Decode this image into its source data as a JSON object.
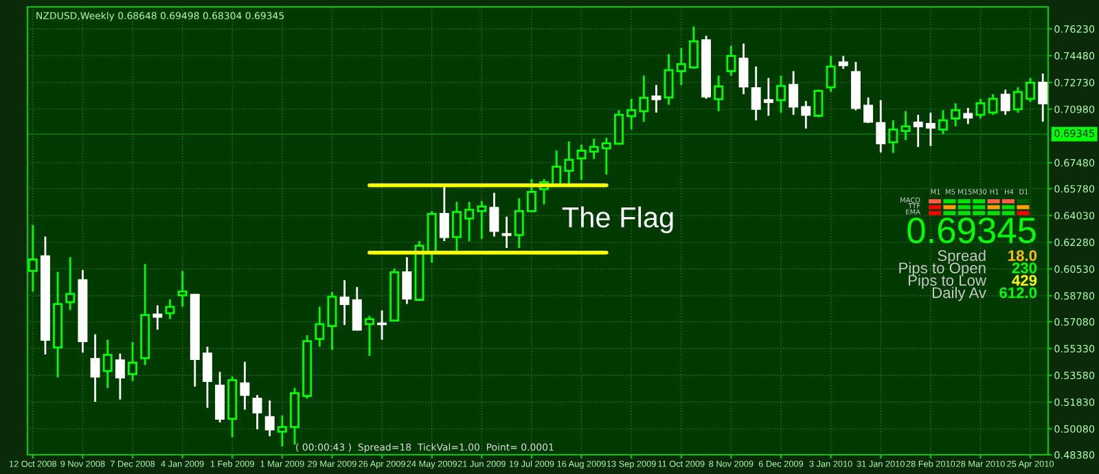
{
  "chart_data": {
    "type": "candlestick",
    "x": [
      "2008-10-12",
      "2008-10-19",
      "2008-10-26",
      "2008-11-02",
      "2008-11-09",
      "2008-11-16",
      "2008-11-23",
      "2008-11-30",
      "2008-12-07",
      "2008-12-14",
      "2008-12-21",
      "2008-12-28",
      "2009-01-04",
      "2009-01-11",
      "2009-01-18",
      "2009-01-25",
      "2009-02-01",
      "2009-02-08",
      "2009-02-15",
      "2009-02-22",
      "2009-03-01",
      "2009-03-08",
      "2009-03-15",
      "2009-03-22",
      "2009-03-29",
      "2009-04-05",
      "2009-04-12",
      "2009-04-19",
      "2009-04-26",
      "2009-05-03",
      "2009-05-10",
      "2009-05-17",
      "2009-05-24",
      "2009-05-31",
      "2009-06-07",
      "2009-06-14",
      "2009-06-21",
      "2009-06-28",
      "2009-07-05",
      "2009-07-12",
      "2009-07-19",
      "2009-07-26",
      "2009-08-02",
      "2009-08-09",
      "2009-08-16",
      "2009-08-23",
      "2009-08-30",
      "2009-09-06",
      "2009-09-13",
      "2009-09-20",
      "2009-09-27",
      "2009-10-04",
      "2009-10-11",
      "2009-10-18",
      "2009-10-25",
      "2009-11-01",
      "2009-11-08",
      "2009-11-15",
      "2009-11-22",
      "2009-11-29",
      "2009-12-06",
      "2009-12-13",
      "2009-12-20",
      "2009-12-27",
      "2010-01-03",
      "2010-01-10",
      "2010-01-17",
      "2010-01-24",
      "2010-01-31",
      "2010-02-07",
      "2010-02-14",
      "2010-02-21",
      "2010-02-28",
      "2010-03-07",
      "2010-03-14",
      "2010-03-21",
      "2010-03-28",
      "2010-04-04",
      "2010-04-11",
      "2010-04-18",
      "2010-04-25",
      "2010-05-02"
    ],
    "ohlc": [
      [
        0.604,
        0.6341,
        0.5905,
        0.6115
      ],
      [
        0.6136,
        0.6265,
        0.5494,
        0.559
      ],
      [
        0.5539,
        0.6034,
        0.5344,
        0.5824
      ],
      [
        0.5836,
        0.613,
        0.5785,
        0.589
      ],
      [
        0.598,
        0.6046,
        0.5506,
        0.5581
      ],
      [
        0.5464,
        0.5626,
        0.5184,
        0.535
      ],
      [
        0.5386,
        0.559,
        0.5275,
        0.5491
      ],
      [
        0.5455,
        0.55,
        0.5199,
        0.5344
      ],
      [
        0.5365,
        0.5575,
        0.532,
        0.544
      ],
      [
        0.547,
        0.6085,
        0.5425,
        0.5752
      ],
      [
        0.5755,
        0.5815,
        0.5656,
        0.574
      ],
      [
        0.5764,
        0.5854,
        0.5725,
        0.5806
      ],
      [
        0.5881,
        0.604,
        0.5806,
        0.5905
      ],
      [
        0.5884,
        0.589,
        0.5284,
        0.5464
      ],
      [
        0.55,
        0.5545,
        0.5145,
        0.532
      ],
      [
        0.529,
        0.538,
        0.5049,
        0.5073
      ],
      [
        0.5073,
        0.535,
        0.4953,
        0.5326
      ],
      [
        0.5305,
        0.5446,
        0.5133,
        0.5229
      ],
      [
        0.5205,
        0.5229,
        0.5004,
        0.5115
      ],
      [
        0.5085,
        0.5193,
        0.4959,
        0.5004
      ],
      [
        0.4989,
        0.5094,
        0.4893,
        0.5019
      ],
      [
        0.5019,
        0.5275,
        0.4905,
        0.5241
      ],
      [
        0.5223,
        0.562,
        0.5205,
        0.5581
      ],
      [
        0.5596,
        0.5806,
        0.5545,
        0.5692
      ],
      [
        0.568,
        0.5902,
        0.5524,
        0.5872
      ],
      [
        0.5866,
        0.598,
        0.5686,
        0.5824
      ],
      [
        0.5848,
        0.5935,
        0.565,
        0.5656
      ],
      [
        0.5692,
        0.5746,
        0.5485,
        0.5725
      ],
      [
        0.5695,
        0.5782,
        0.559,
        0.5692
      ],
      [
        0.5716,
        0.6055,
        0.571,
        0.6031
      ],
      [
        0.6031,
        0.613,
        0.5824,
        0.586
      ],
      [
        0.5851,
        0.6235,
        0.5845,
        0.6205
      ],
      [
        0.6166,
        0.6431,
        0.6094,
        0.6413
      ],
      [
        0.6413,
        0.6596,
        0.6235,
        0.6262
      ],
      [
        0.6262,
        0.6491,
        0.6166,
        0.6425
      ],
      [
        0.6383,
        0.6491,
        0.6235,
        0.644
      ],
      [
        0.6431,
        0.6497,
        0.625,
        0.6461
      ],
      [
        0.6452,
        0.6551,
        0.6265,
        0.6302
      ],
      [
        0.6281,
        0.6395,
        0.619,
        0.6275
      ],
      [
        0.6275,
        0.6515,
        0.619,
        0.6431
      ],
      [
        0.6431,
        0.6641,
        0.6425,
        0.6557
      ],
      [
        0.6575,
        0.6641,
        0.6476,
        0.662
      ],
      [
        0.6605,
        0.6827,
        0.6596,
        0.6722
      ],
      [
        0.6695,
        0.6887,
        0.6611,
        0.6767
      ],
      [
        0.6776,
        0.6866,
        0.6635,
        0.6827
      ],
      [
        0.6821,
        0.6905,
        0.6773,
        0.6851
      ],
      [
        0.6842,
        0.6911,
        0.6671,
        0.6875
      ],
      [
        0.6872,
        0.7091,
        0.6866,
        0.7061
      ],
      [
        0.7052,
        0.7166,
        0.6965,
        0.7091
      ],
      [
        0.7085,
        0.7317,
        0.7016,
        0.7172
      ],
      [
        0.7181,
        0.7256,
        0.7076,
        0.7163
      ],
      [
        0.7175,
        0.7458,
        0.7127,
        0.7353
      ],
      [
        0.7347,
        0.7497,
        0.7256,
        0.7392
      ],
      [
        0.7371,
        0.7638,
        0.7362,
        0.7542
      ],
      [
        0.7548,
        0.7578,
        0.7166,
        0.7181
      ],
      [
        0.7163,
        0.7317,
        0.7085,
        0.7247
      ],
      [
        0.7347,
        0.7512,
        0.7317,
        0.7446
      ],
      [
        0.7428,
        0.7527,
        0.7196,
        0.7247
      ],
      [
        0.7235,
        0.7377,
        0.7025,
        0.71
      ],
      [
        0.7157,
        0.7302,
        0.7055,
        0.7145
      ],
      [
        0.7157,
        0.7317,
        0.7076,
        0.725
      ],
      [
        0.7256,
        0.7347,
        0.7061,
        0.7115
      ],
      [
        0.7112,
        0.7151,
        0.6971,
        0.7061
      ],
      [
        0.7055,
        0.7226,
        0.7046,
        0.7217
      ],
      [
        0.7241,
        0.7446,
        0.7211,
        0.7377
      ],
      [
        0.7404,
        0.7446,
        0.7362,
        0.7386
      ],
      [
        0.7341,
        0.7407,
        0.7091,
        0.7106
      ],
      [
        0.7121,
        0.7175,
        0.7007,
        0.7016
      ],
      [
        0.7007,
        0.7157,
        0.6815,
        0.6875
      ],
      [
        0.6881,
        0.7025,
        0.6812,
        0.6965
      ],
      [
        0.6956,
        0.7085,
        0.6896,
        0.6986
      ],
      [
        0.701,
        0.7061,
        0.6851,
        0.6986
      ],
      [
        0.7001,
        0.7076,
        0.6857,
        0.6977
      ],
      [
        0.6965,
        0.7091,
        0.6935,
        0.7025
      ],
      [
        0.7037,
        0.7136,
        0.6986,
        0.7091
      ],
      [
        0.7067,
        0.7106,
        0.7001,
        0.7043
      ],
      [
        0.7061,
        0.7166,
        0.7037,
        0.7136
      ],
      [
        0.7076,
        0.7196,
        0.7061,
        0.7166
      ],
      [
        0.7193,
        0.7226,
        0.7061,
        0.7091
      ],
      [
        0.7097,
        0.7241,
        0.7076,
        0.7211
      ],
      [
        0.7166,
        0.7302,
        0.7145,
        0.7271
      ],
      [
        0.7271,
        0.7331,
        0.7016,
        0.7136
      ]
    ],
    "colors": [
      "#00ff00",
      "#ffffff",
      "#00ff00",
      "#00ff00",
      "#ffffff",
      "#ffffff",
      "#00ff00",
      "#ffffff",
      "#00ff00",
      "#00ff00",
      "#ffffff",
      "#00ff00",
      "#00ff00",
      "#ffffff",
      "#ffffff",
      "#ffffff",
      "#00ff00",
      "#ffffff",
      "#ffffff",
      "#ffffff",
      "#00ff00",
      "#00ff00",
      "#00ff00",
      "#00ff00",
      "#00ff00",
      "#ffffff",
      "#ffffff",
      "#00ff00",
      "#ffffff",
      "#00ff00",
      "#ffffff",
      "#00ff00",
      "#00ff00",
      "#ffffff",
      "#00ff00",
      "#00ff00",
      "#00ff00",
      "#ffffff",
      "#ffffff",
      "#00ff00",
      "#00ff00",
      "#00ff00",
      "#00ff00",
      "#00ff00",
      "#00ff00",
      "#00ff00",
      "#00ff00",
      "#00ff00",
      "#00ff00",
      "#00ff00",
      "#ffffff",
      "#00ff00",
      "#00ff00",
      "#00ff00",
      "#ffffff",
      "#00ff00",
      "#00ff00",
      "#ffffff",
      "#ffffff",
      "#ffffff",
      "#00ff00",
      "#ffffff",
      "#ffffff",
      "#00ff00",
      "#00ff00",
      "#ffffff",
      "#ffffff",
      "#ffffff",
      "#ffffff",
      "#00ff00",
      "#00ff00",
      "#ffffff",
      "#ffffff",
      "#00ff00",
      "#00ff00",
      "#ffffff",
      "#00ff00",
      "#00ff00",
      "#ffffff",
      "#00ff00",
      "#00ff00",
      "#ffffff"
    ],
    "series": [
      {
        "type": "line",
        "x": [
          "2009-04-19",
          "2009-08-30"
        ],
        "values": [
          0.66,
          0.66
        ],
        "color": "#ffff00"
      },
      {
        "type": "line",
        "x": [
          "2009-04-19",
          "2009-08-30"
        ],
        "values": [
          0.616,
          0.616
        ],
        "color": "#ffff00"
      }
    ],
    "ref_lines": [
      {
        "axis": "y",
        "value": 0.69345,
        "label": "0.69345",
        "color": "#00ff00"
      }
    ],
    "annotations": [
      "NZDUSD,Weekly 0.68648 0.69498 0.68304 0.69345",
      "( 00:00:43 )  Spread=18  TickVal=1.00  Point= 0.0001",
      "The Flag",
      "0.69345",
      "Spread",
      "18.0",
      "Pips to Open",
      "230",
      "Pips to Low",
      "429",
      "Daily Av",
      "612.0",
      "M1",
      "M5",
      "M15",
      "M30",
      "H1",
      "H4",
      "D1",
      "MACD",
      "TTF",
      "EMA"
    ],
    "xlim": [
      "2008-10-09",
      "2010-05-05"
    ],
    "xticks": [
      {
        "value": "2008-10-12",
        "label": "12 Oct 2008"
      },
      {
        "value": "2008-11-09",
        "label": "9 Nov 2008"
      },
      {
        "value": "2008-12-07",
        "label": "7 Dec 2008"
      },
      {
        "value": "2009-01-04",
        "label": "4 Jan 2009"
      },
      {
        "value": "2009-02-01",
        "label": "1 Feb 2009"
      },
      {
        "value": "2009-03-01",
        "label": "1 Mar 2009"
      },
      {
        "value": "2009-03-29",
        "label": "29 Mar 2009"
      },
      {
        "value": "2009-04-26",
        "label": "26 Apr 2009"
      },
      {
        "value": "2009-05-24",
        "label": "24 May 2009"
      },
      {
        "value": "2009-06-21",
        "label": "21 Jun 2009"
      },
      {
        "value": "2009-07-19",
        "label": "19 Jul 2009"
      },
      {
        "value": "2009-08-16",
        "label": "16 Aug 2009"
      },
      {
        "value": "2009-09-13",
        "label": "13 Sep 2009"
      },
      {
        "value": "2009-10-11",
        "label": "11 Oct 2009"
      },
      {
        "value": "2009-11-08",
        "label": "8 Nov 2009"
      },
      {
        "value": "2009-12-06",
        "label": "6 Dec 2009"
      },
      {
        "value": "2010-01-03",
        "label": "3 Jan 2010"
      },
      {
        "value": "2010-01-31",
        "label": "31 Jan 2010"
      },
      {
        "value": "2010-02-28",
        "label": "28 Feb 2010"
      },
      {
        "value": "2010-03-28",
        "label": "28 Mar 2010"
      },
      {
        "value": "2010-04-25",
        "label": "25 Apr 2010"
      }
    ],
    "ylim": [
      0.4838,
      0.7767
    ],
    "yticks": [
      {
        "value": 0.7623,
        "label": "0.76230"
      },
      {
        "value": 0.7448,
        "label": "0.74480"
      },
      {
        "value": 0.7273,
        "label": "0.72730"
      },
      {
        "value": 0.7098,
        "label": "0.70980"
      },
      {
        "value": 0.6748,
        "label": "0.67480"
      },
      {
        "value": 0.6578,
        "label": "0.65780"
      },
      {
        "value": 0.6403,
        "label": "0.64030"
      },
      {
        "value": 0.6228,
        "label": "0.62280"
      },
      {
        "value": 0.6053,
        "label": "0.60530"
      },
      {
        "value": 0.5878,
        "label": "0.58780"
      },
      {
        "value": 0.5708,
        "label": "0.57080"
      },
      {
        "value": 0.5533,
        "label": "0.55330"
      },
      {
        "value": 0.5358,
        "label": "0.53580"
      },
      {
        "value": 0.5183,
        "label": "0.51830"
      },
      {
        "value": 0.5008,
        "label": "0.50080"
      },
      {
        "value": 0.4838,
        "label": "0.48380"
      }
    ],
    "grid": true
  }
}
